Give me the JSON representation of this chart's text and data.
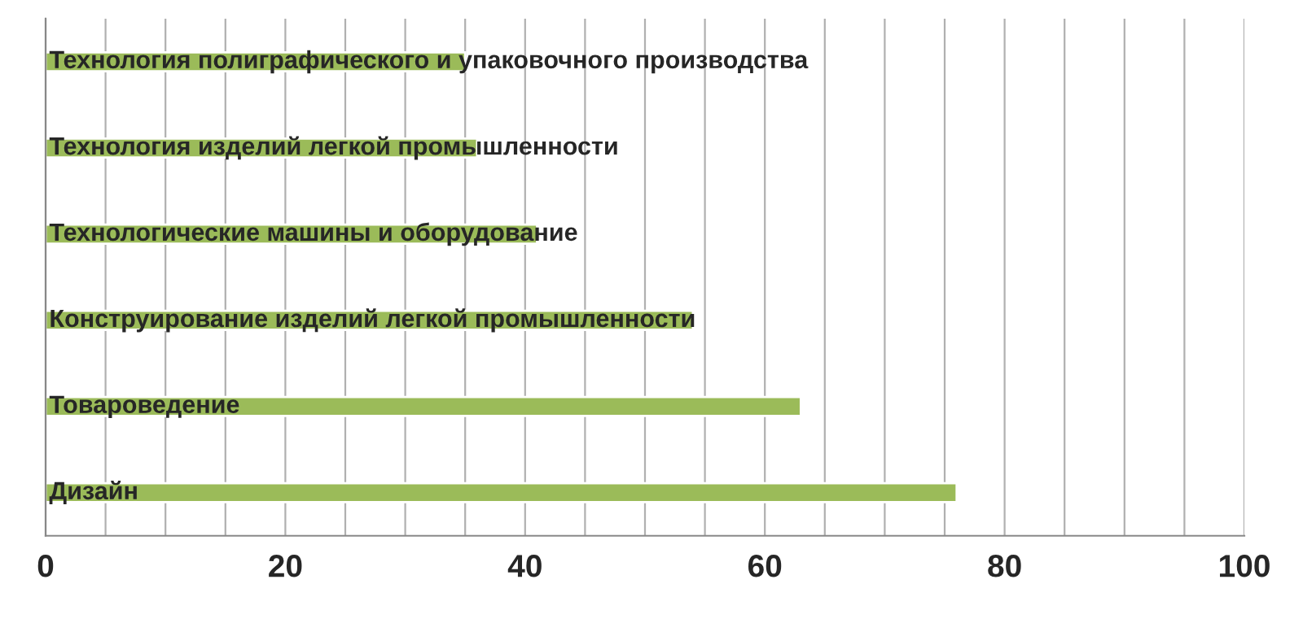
{
  "chart_data": {
    "type": "bar",
    "orientation": "horizontal",
    "categories": [
      "Технология полиграфического и упаковочного производства",
      "Технология изделий легкой промышленности",
      "Технологические машины и оборудование",
      "Конструирование изделий легкой промышленности",
      "Товароведение",
      "Дизайн"
    ],
    "values": [
      35,
      36,
      41,
      54,
      63,
      76
    ],
    "color": "#9bbb59",
    "xlim": [
      0,
      100
    ],
    "xticks": [
      0,
      {
        "value": 5,
        "label": null
      },
      {
        "value": 10,
        "label": null
      },
      {
        "value": 15,
        "label": null
      },
      20,
      {
        "value": 25,
        "label": null
      },
      {
        "value": 30,
        "label": null
      },
      {
        "value": 35,
        "label": null
      },
      40,
      {
        "value": 45,
        "label": null
      },
      {
        "value": 50,
        "label": null
      },
      {
        "value": 55,
        "label": null
      },
      60,
      {
        "value": 65,
        "label": null
      },
      {
        "value": 70,
        "label": null
      },
      {
        "value": 75,
        "label": null
      },
      80,
      {
        "value": 85,
        "label": null
      },
      {
        "value": 90,
        "label": null
      },
      {
        "value": 95,
        "label": null
      },
      100
    ],
    "grid": "x"
  }
}
